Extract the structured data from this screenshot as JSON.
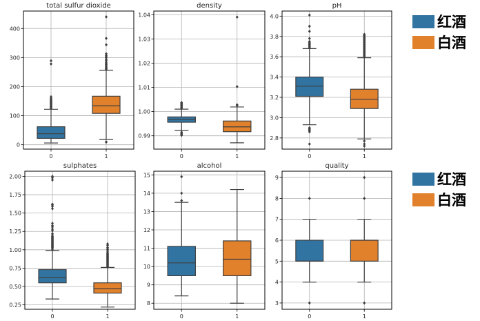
{
  "colors": {
    "box_0": "#3274a1",
    "box_1": "#e1812c",
    "outline": "#3f3f3f",
    "grid": "#b0b0b0",
    "axes": "#000000"
  },
  "legends": [
    {
      "items": [
        {
          "label": "红酒",
          "color": "#3274a1"
        },
        {
          "label": "白酒",
          "color": "#e1812c"
        }
      ]
    },
    {
      "items": [
        {
          "label": "红酒",
          "color": "#3274a1"
        },
        {
          "label": "白酒",
          "color": "#e1812c"
        }
      ]
    }
  ],
  "chart_data": [
    {
      "type": "box",
      "title": "total sulfur dioxide",
      "categories": [
        "0",
        "1"
      ],
      "yticks": [
        0,
        100,
        200,
        300,
        400
      ],
      "ytick_labels": [
        "0",
        "100",
        "200",
        "300",
        "400"
      ],
      "ylim": [
        -15,
        460
      ],
      "boxes": [
        {
          "category": "0",
          "whisker_low": 6,
          "q1": 22,
          "median": 38,
          "q3": 62,
          "whisker_high": 122,
          "outliers": [
            125,
            128,
            131,
            134,
            137,
            140,
            143,
            146,
            149,
            152,
            155,
            160,
            165,
            278,
            289
          ]
        },
        {
          "category": "1",
          "whisker_low": 18,
          "q1": 108,
          "median": 134,
          "q3": 167,
          "whisker_high": 256,
          "outliers": [
            10,
            9,
            260,
            262,
            265,
            268,
            272,
            276,
            280,
            284,
            290,
            294,
            300,
            303,
            307,
            313,
            344,
            366,
            440
          ]
        }
      ]
    },
    {
      "type": "box",
      "title": "density",
      "categories": [
        "0",
        "1"
      ],
      "yticks": [
        0.99,
        1.0,
        1.01,
        1.02,
        1.03,
        1.04
      ],
      "ytick_labels": [
        "0.99",
        "1.00",
        "1.01",
        "1.02",
        "1.03",
        "1.04"
      ],
      "ylim": [
        0.9845,
        1.0415
      ],
      "boxes": [
        {
          "category": "0",
          "whisker_low": 0.9922,
          "q1": 0.9956,
          "median": 0.9968,
          "q3": 0.9978,
          "whisker_high": 1.001,
          "outliers": [
            0.9915,
            0.991,
            0.9906,
            0.9902,
            1.0014,
            1.0018,
            1.0022,
            1.0026,
            1.003,
            1.0034,
            1.0037
          ]
        },
        {
          "category": "1",
          "whisker_low": 0.9871,
          "q1": 0.9917,
          "median": 0.9937,
          "q3": 0.9961,
          "whisker_high": 1.0019,
          "outliers": [
            1.0025,
            1.0028,
            1.0103,
            1.039
          ]
        }
      ]
    },
    {
      "type": "box",
      "title": "pH",
      "categories": [
        "0",
        "1"
      ],
      "yticks": [
        2.8,
        3.0,
        3.2,
        3.4,
        3.6,
        3.8,
        4.0
      ],
      "ytick_labels": [
        "2.8",
        "3.0",
        "3.2",
        "3.4",
        "3.6",
        "3.8",
        "4.0"
      ],
      "ylim": [
        2.69,
        4.05
      ],
      "boxes": [
        {
          "category": "0",
          "whisker_low": 2.93,
          "q1": 3.21,
          "median": 3.31,
          "q3": 3.4,
          "whisker_high": 3.68,
          "outliers": [
            2.74,
            2.86,
            2.87,
            2.88,
            2.89,
            2.9,
            3.69,
            3.7,
            3.71,
            3.72,
            3.73,
            3.74,
            3.75,
            3.78,
            3.85,
            3.9,
            4.01
          ]
        },
        {
          "category": "1",
          "whisker_low": 2.79,
          "q1": 3.09,
          "median": 3.18,
          "q3": 3.28,
          "whisker_high": 3.59,
          "outliers": [
            2.72,
            2.74,
            2.77,
            3.6,
            3.61,
            3.62,
            3.63,
            3.64,
            3.65,
            3.66,
            3.67,
            3.68,
            3.69,
            3.7,
            3.71,
            3.72,
            3.73,
            3.74,
            3.75,
            3.76,
            3.77,
            3.78,
            3.79,
            3.8,
            3.81,
            3.82
          ]
        }
      ]
    },
    {
      "type": "box",
      "title": "sulphates",
      "categories": [
        "0",
        "1"
      ],
      "yticks": [
        0.25,
        0.5,
        0.75,
        1.0,
        1.25,
        1.5,
        1.75,
        2.0
      ],
      "ytick_labels": [
        "0.25",
        "0.50",
        "0.75",
        "1.00",
        "1.25",
        "1.50",
        "1.75",
        "2.00"
      ],
      "ylim": [
        0.19,
        2.07
      ],
      "boxes": [
        {
          "category": "0",
          "whisker_low": 0.33,
          "q1": 0.55,
          "median": 0.62,
          "q3": 0.73,
          "whisker_high": 0.99,
          "outliers": [
            1.0,
            1.02,
            1.03,
            1.04,
            1.05,
            1.06,
            1.07,
            1.08,
            1.09,
            1.1,
            1.11,
            1.12,
            1.13,
            1.14,
            1.15,
            1.16,
            1.17,
            1.18,
            1.2,
            1.22,
            1.26,
            1.28,
            1.31,
            1.33,
            1.36,
            1.56,
            1.59,
            1.61,
            1.62,
            1.95,
            1.98,
            2.0
          ]
        },
        {
          "category": "1",
          "whisker_low": 0.22,
          "q1": 0.41,
          "median": 0.47,
          "q3": 0.55,
          "whisker_high": 0.76,
          "outliers": [
            0.77,
            0.78,
            0.79,
            0.8,
            0.81,
            0.82,
            0.83,
            0.84,
            0.85,
            0.86,
            0.87,
            0.88,
            0.89,
            0.9,
            0.91,
            0.92,
            0.93,
            0.94,
            0.95,
            0.96,
            0.98,
            1.0,
            1.01,
            1.03,
            1.06,
            1.08
          ]
        }
      ]
    },
    {
      "type": "box",
      "title": "alcohol",
      "categories": [
        "0",
        "1"
      ],
      "yticks": [
        8,
        9,
        10,
        11,
        12,
        13,
        14,
        15
      ],
      "ytick_labels": [
        "8",
        "9",
        "10",
        "11",
        "12",
        "13",
        "14",
        "15"
      ],
      "ylim": [
        7.67,
        15.2
      ],
      "boxes": [
        {
          "category": "0",
          "whisker_low": 8.4,
          "q1": 9.5,
          "median": 10.2,
          "q3": 11.1,
          "whisker_high": 13.5,
          "outliers": [
            13.6,
            14.0,
            14.9
          ]
        },
        {
          "category": "1",
          "whisker_low": 8.0,
          "q1": 9.5,
          "median": 10.4,
          "q3": 11.4,
          "whisker_high": 14.2,
          "outliers": []
        }
      ]
    },
    {
      "type": "box",
      "title": "quality",
      "categories": [
        "0",
        "1"
      ],
      "yticks": [
        3,
        4,
        5,
        6,
        7,
        8,
        9
      ],
      "ytick_labels": [
        "3",
        "4",
        "5",
        "6",
        "7",
        "8",
        "9"
      ],
      "ylim": [
        2.7,
        9.3
      ],
      "boxes": [
        {
          "category": "0",
          "whisker_low": 4,
          "q1": 5,
          "median": 5,
          "q3": 6,
          "whisker_high": 7,
          "outliers": [
            3,
            8
          ]
        },
        {
          "category": "1",
          "whisker_low": 4,
          "q1": 5,
          "median": 6,
          "q3": 6,
          "whisker_high": 7,
          "outliers": [
            3,
            8,
            9
          ]
        }
      ]
    }
  ]
}
